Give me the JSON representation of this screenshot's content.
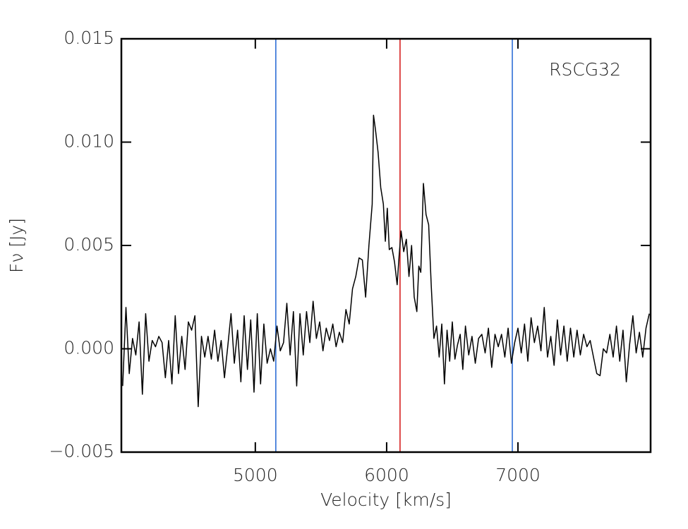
{
  "chart_data": {
    "type": "line",
    "xlabel": "Velocity [km/s]",
    "ylabel": "Fν [Jy]",
    "annotation": "RSCG32",
    "color": "#000000",
    "xlim": [
      3980,
      8010
    ],
    "ylim": [
      -0.005,
      0.015
    ],
    "xticks": [
      5000,
      6000,
      7000
    ],
    "yticks": [
      {
        "value": -0.005,
        "label": "−0.005"
      },
      {
        "value": 0,
        "label": "0.000"
      },
      0.005,
      {
        "value": 0.01,
        "label": "0.010"
      },
      0.015
    ],
    "vlines": [
      {
        "x": 5156,
        "color": "#2f6fd6"
      },
      {
        "x": 6102,
        "color": "#d62020"
      },
      {
        "x": 6957,
        "color": "#2f6fd6"
      }
    ],
    "x": [
      3990,
      4015,
      4040,
      4065,
      4090,
      4115,
      4140,
      4165,
      4190,
      4215,
      4240,
      4265,
      4290,
      4315,
      4340,
      4365,
      4390,
      4415,
      4440,
      4465,
      4490,
      4515,
      4540,
      4565,
      4590,
      4615,
      4640,
      4665,
      4690,
      4715,
      4740,
      4765,
      4790,
      4815,
      4840,
      4865,
      4890,
      4915,
      4940,
      4965,
      4990,
      5015,
      5040,
      5065,
      5090,
      5115,
      5140,
      5165,
      5190,
      5215,
      5240,
      5265,
      5290,
      5315,
      5340,
      5365,
      5390,
      5415,
      5440,
      5465,
      5490,
      5515,
      5540,
      5565,
      5590,
      5615,
      5640,
      5665,
      5690,
      5715,
      5740,
      5765,
      5790,
      5815,
      5840,
      5865,
      5890,
      5900,
      5915,
      5935,
      5955,
      5975,
      5990,
      6005,
      6020,
      6040,
      6060,
      6080,
      6095,
      6110,
      6130,
      6150,
      6170,
      6190,
      6210,
      6230,
      6245,
      6260,
      6280,
      6300,
      6320,
      6340,
      6360,
      6380,
      6400,
      6420,
      6440,
      6460,
      6480,
      6500,
      6520,
      6540,
      6560,
      6580,
      6600,
      6625,
      6650,
      6675,
      6700,
      6725,
      6750,
      6775,
      6800,
      6825,
      6850,
      6875,
      6900,
      6925,
      6950,
      6975,
      7000,
      7025,
      7050,
      7075,
      7100,
      7125,
      7150,
      7175,
      7200,
      7225,
      7250,
      7275,
      7300,
      7325,
      7350,
      7375,
      7400,
      7425,
      7450,
      7475,
      7500,
      7525,
      7550,
      7575,
      7600,
      7625,
      7650,
      7675,
      7700,
      7725,
      7750,
      7775,
      7800,
      7825,
      7850,
      7875,
      7900,
      7925,
      7950,
      7975,
      8000
    ],
    "values": [
      -0.0018,
      0.002,
      -0.0012,
      0.0005,
      -0.0003,
      0.0013,
      -0.0022,
      0.0017,
      -0.0006,
      0.0004,
      0.0001,
      0.0006,
      0.0003,
      -0.0014,
      0.0004,
      -0.0017,
      0.0016,
      -0.0012,
      0.0006,
      -0.001,
      0.0013,
      0.0009,
      0.0016,
      -0.0028,
      0.0006,
      -0.0004,
      0.0006,
      -0.0005,
      0.0009,
      -0.0006,
      0.0004,
      -0.0014,
      0.0001,
      0.0017,
      -0.0007,
      0.0009,
      -0.0016,
      0.0016,
      -0.001,
      0.0014,
      -0.0021,
      0.0017,
      -0.0017,
      0.0012,
      -0.0007,
      0,
      -0.0006,
      0.0011,
      -0.0001,
      0.0003,
      0.0022,
      -0.0003,
      0.0018,
      -0.0018,
      0.0017,
      -0.0003,
      0.0018,
      0.0003,
      0.0023,
      0.0005,
      0.0013,
      -0.0001,
      0.001,
      0.0004,
      0.0012,
      0.0001,
      0.0008,
      0.0003,
      0.0019,
      0.0012,
      0.0029,
      0.0035,
      0.0044,
      0.0043,
      0.0025,
      0.005,
      0.007,
      0.0113,
      0.0106,
      0.0095,
      0.0078,
      0.007,
      0.0052,
      0.0068,
      0.0048,
      0.0049,
      0.0042,
      0.0031,
      0.0045,
      0.0057,
      0.0047,
      0.0053,
      0.0035,
      0.005,
      0.0025,
      0.0018,
      0.004,
      0.0037,
      0.008,
      0.0065,
      0.006,
      0.003,
      0.0005,
      0.0011,
      -0.0004,
      0.0012,
      -0.0017,
      0.0009,
      -0.0006,
      0.0013,
      -0.0005,
      0.0002,
      0.0007,
      -0.001,
      0.0011,
      -0.0003,
      0.0006,
      -0.0007,
      0.0005,
      0.0007,
      -0.0002,
      0.001,
      -0.0009,
      0.0007,
      0.0001,
      0.0007,
      -0.0004,
      0.001,
      -0.0007,
      0.0003,
      0.001,
      -0.0002,
      0.0012,
      -0.0006,
      0.0015,
      0.0003,
      0.0011,
      -0.0001,
      0.002,
      -0.0004,
      0.0006,
      -0.0008,
      0.0014,
      -0.0003,
      0.0011,
      -0.0006,
      0.001,
      -0.0004,
      0.0009,
      -0.0003,
      0.0007,
      0.0001,
      0.0004,
      -0.0004,
      -0.0012,
      -0.0013,
      0,
      -0.0002,
      0.0007,
      -0.0004,
      0.0011,
      -0.0006,
      0.0009,
      -0.0016,
      0.0002,
      0.0016,
      -0.0002,
      0.0008,
      -0.0004,
      0.001,
      0.0017
    ]
  }
}
